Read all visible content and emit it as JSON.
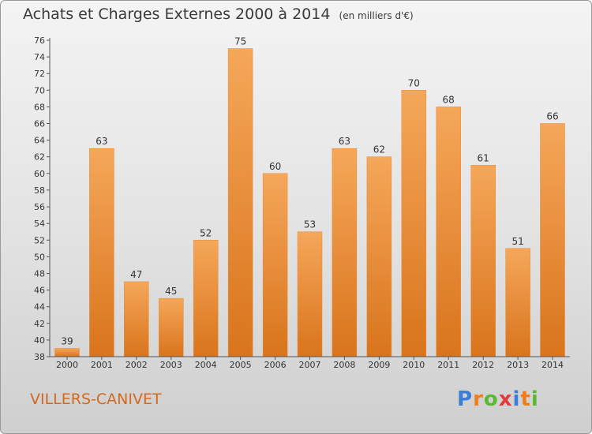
{
  "title": "Achats et Charges Externes 2000 à 2014",
  "unit_note": "(en milliers d'€)",
  "place_name": "VILLERS-CANIVET",
  "logo": {
    "text": "Proxiti",
    "letter_colors": [
      "#3a7fd5",
      "#ef7d1a",
      "#5cb833",
      "#e23b3b",
      "#3a7fd5",
      "#ef7d1a",
      "#5cb833"
    ]
  },
  "colors": {
    "bar_top": "#f5a75a",
    "bar_bottom": "#d9741c",
    "accent_text": "#d2691e"
  },
  "chart_data": {
    "type": "bar",
    "title": "Achats et Charges Externes 2000 à 2014",
    "subtitle": "(en milliers d'€)",
    "categories": [
      "2000",
      "2001",
      "2002",
      "2003",
      "2004",
      "2005",
      "2006",
      "2007",
      "2008",
      "2009",
      "2010",
      "2011",
      "2012",
      "2013",
      "2014"
    ],
    "values": [
      39,
      63,
      47,
      45,
      52,
      75,
      60,
      53,
      63,
      62,
      70,
      68,
      61,
      51,
      66
    ],
    "ylim": [
      38,
      76
    ],
    "yticks": [
      38,
      40,
      42,
      44,
      46,
      48,
      50,
      52,
      54,
      56,
      58,
      60,
      62,
      64,
      66,
      68,
      70,
      72,
      74,
      76
    ],
    "grid": false,
    "xlabel": "",
    "ylabel": ""
  }
}
